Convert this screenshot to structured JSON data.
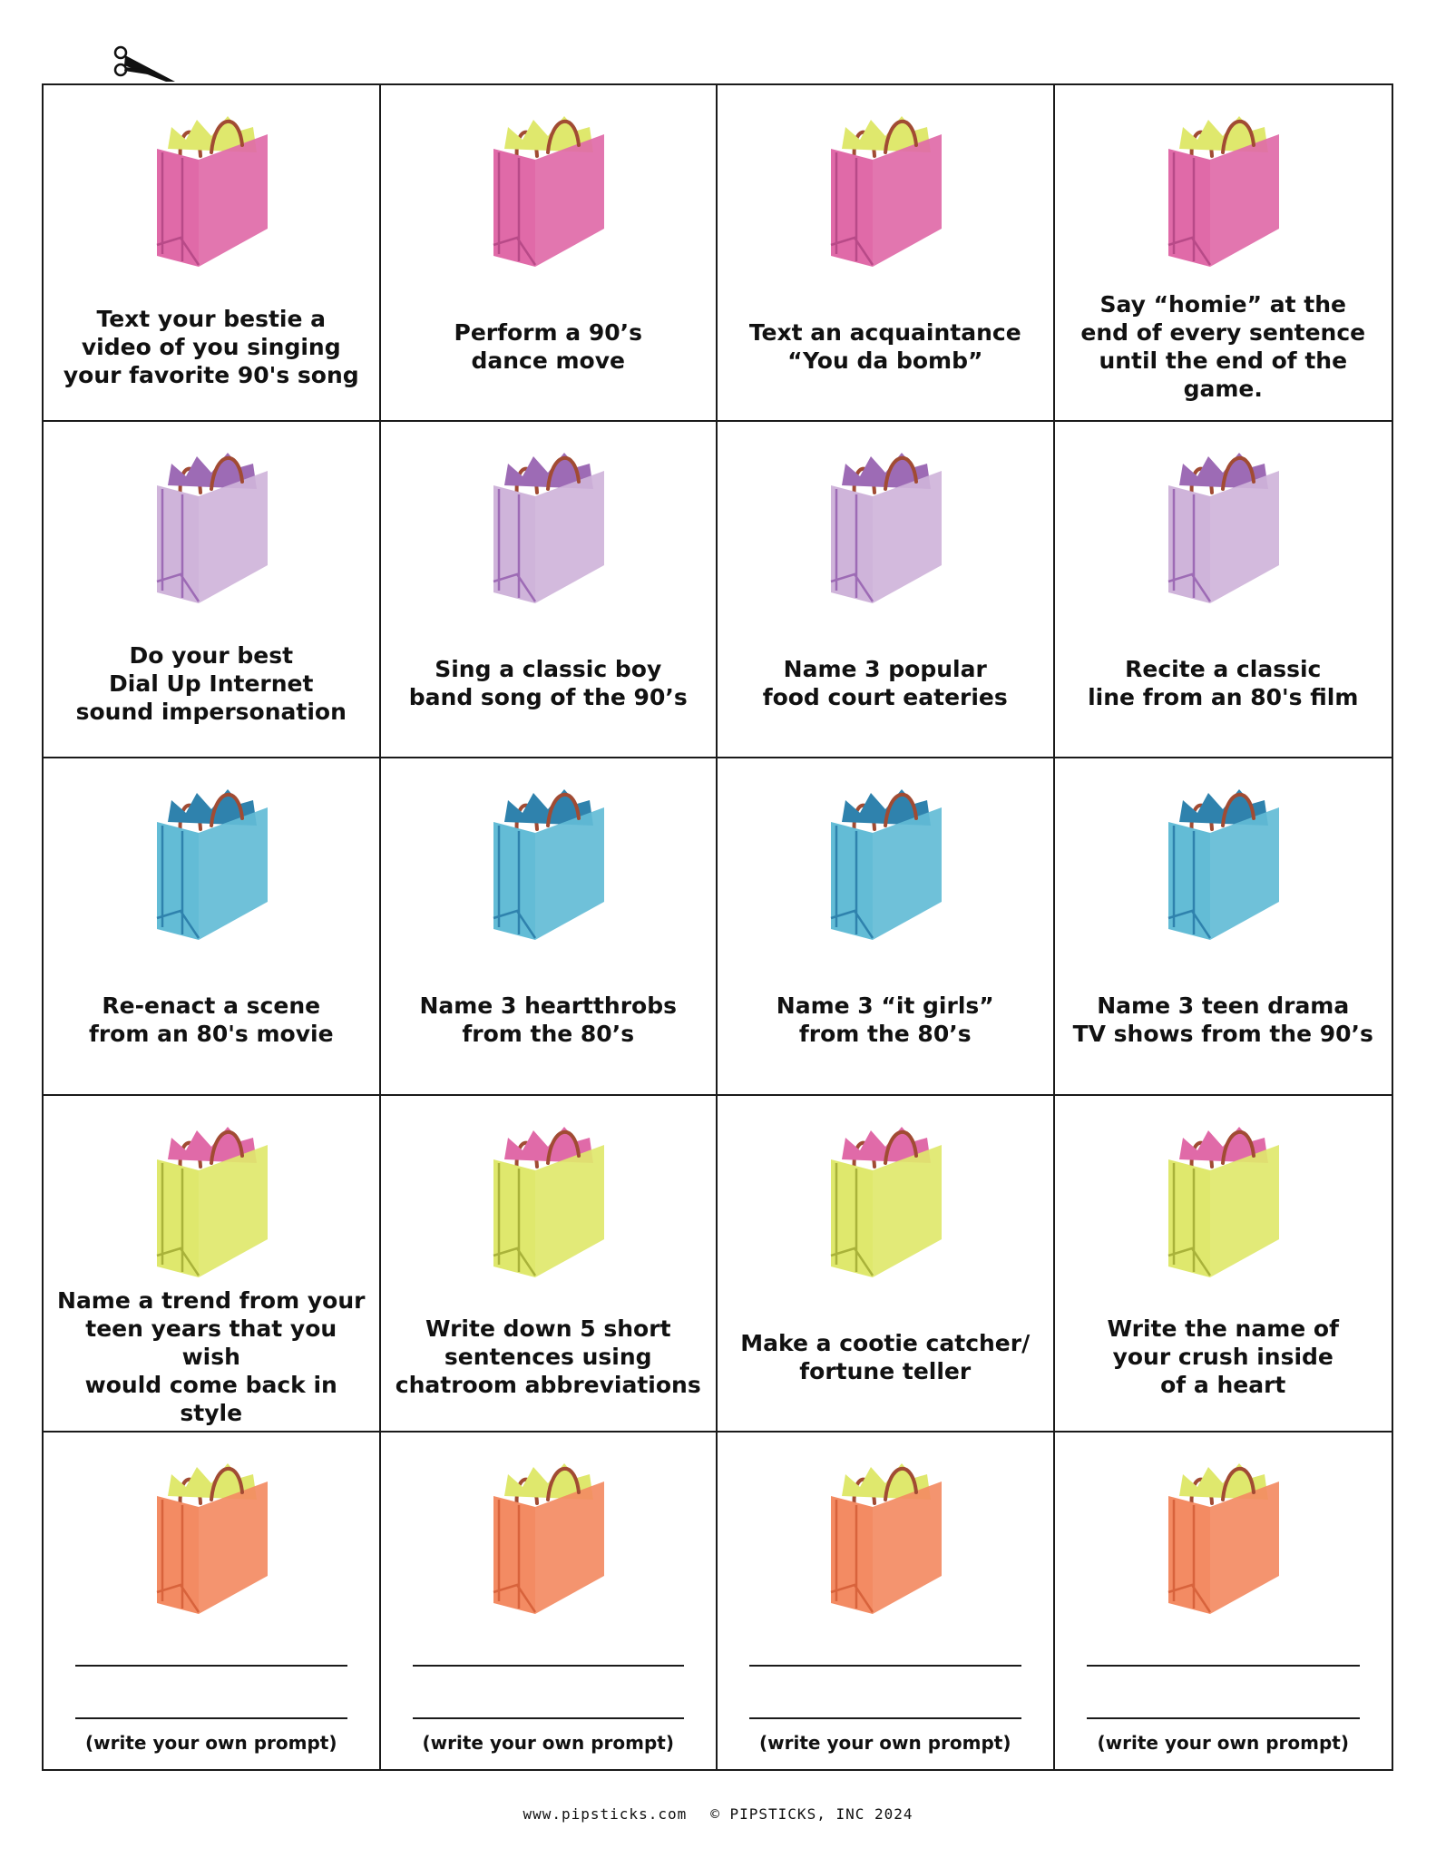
{
  "colors": {
    "pink": "#e06aa8",
    "pink_dark": "#b84a88",
    "lavender": "#cfb4da",
    "lavender_dark": "#9d6bb5",
    "blue": "#63bcd6",
    "blue_dark": "#2f82ad",
    "lime": "#dfe86d",
    "lime_dark": "#a9b23a",
    "orange": "#f38b63",
    "orange_dark": "#d8633c",
    "handle": "#a14b33"
  },
  "icons": {
    "cut_mark": "scissors-icon",
    "card_image": "shopping-bag-icon"
  },
  "rows": [
    {
      "bag": {
        "body": "pink",
        "tissue": "lime"
      },
      "cards": [
        {
          "prompt": "Text your bestie a\nvideo of you singing\nyour favorite 90's song"
        },
        {
          "prompt": "Perform a 90’s\ndance move"
        },
        {
          "prompt": "Text an acquaintance\n“You da bomb”"
        },
        {
          "prompt": "Say “homie” at the\nend of every sentence\nuntil the end of the game."
        }
      ]
    },
    {
      "bag": {
        "body": "lavender",
        "tissue": "lavender_dark"
      },
      "cards": [
        {
          "prompt": "Do your best\nDial Up Internet\nsound impersonation"
        },
        {
          "prompt": "Sing a classic boy\nband song of the 90’s"
        },
        {
          "prompt": "Name 3 popular\nfood court eateries"
        },
        {
          "prompt": "Recite a classic\nline from an 80's film"
        }
      ]
    },
    {
      "bag": {
        "body": "blue",
        "tissue": "blue_dark"
      },
      "cards": [
        {
          "prompt": "Re-enact a scene\nfrom an 80's movie"
        },
        {
          "prompt": "Name 3 heartthrobs\nfrom the 80’s"
        },
        {
          "prompt": "Name 3 “it girls”\nfrom the 80’s"
        },
        {
          "prompt": "Name 3 teen drama\nTV shows from the 90’s"
        }
      ]
    },
    {
      "bag": {
        "body": "lime",
        "tissue": "pink"
      },
      "cards": [
        {
          "prompt": "Name a trend from your\nteen years that you wish\nwould come back in style"
        },
        {
          "prompt": "Write down 5 short\nsentences using\nchatroom abbreviations"
        },
        {
          "prompt": "Make a cootie catcher/\nfortune teller"
        },
        {
          "prompt": "Write the name of\nyour crush inside\nof a heart"
        }
      ]
    },
    {
      "bag": {
        "body": "orange",
        "tissue": "lime"
      },
      "cards": [
        {
          "blank": true,
          "hint": "(write your own prompt)"
        },
        {
          "blank": true,
          "hint": "(write your own prompt)"
        },
        {
          "blank": true,
          "hint": "(write your own prompt)"
        },
        {
          "blank": true,
          "hint": "(write your own prompt)"
        }
      ]
    }
  ],
  "footer": {
    "website": "www.pipsticks.com",
    "copyright": "© PIPSTICKS, INC 2024"
  }
}
